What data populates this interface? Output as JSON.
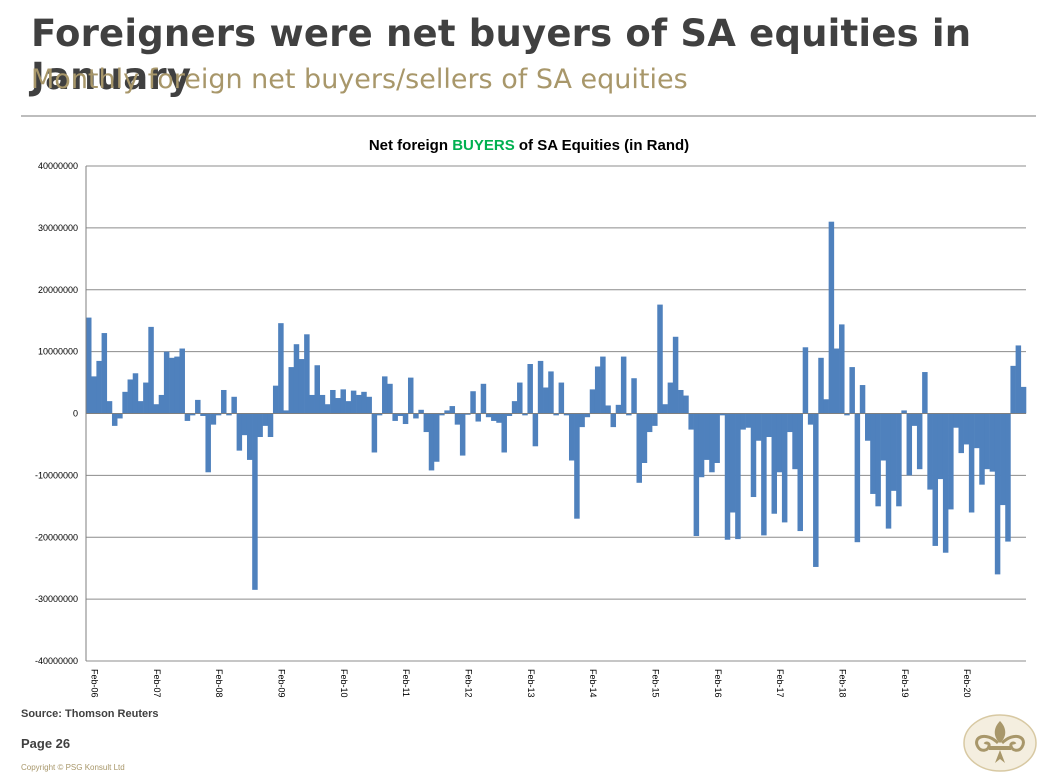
{
  "header": {
    "title": "Foreigners were net buyers of SA equities in January",
    "subtitle": "Monthly foreign net buyers/sellers of SA equities"
  },
  "footer": {
    "source": "Source: Thomson Reuters",
    "page": "Page 26",
    "copyright": "Copyright © PSG Konsult Ltd"
  },
  "logo_icon": "fleur-de-lis-icon",
  "colors": {
    "bar": "#4F81BD",
    "buyers_highlight": "#00B050",
    "title": "#404040",
    "subtitle": "#A8976A"
  },
  "chart_data": {
    "type": "bar",
    "title_parts": [
      "Net foreign ",
      "BUYERS",
      " of SA Equities (in Rand)"
    ],
    "x_start": "Feb-06",
    "x_end": "Jan-21",
    "x_tick_labels": [
      "Feb-06",
      "Feb-07",
      "Feb-08",
      "Feb-09",
      "Feb-10",
      "Feb-11",
      "Feb-12",
      "Feb-13",
      "Feb-14",
      "Feb-15",
      "Feb-16",
      "Feb-17",
      "Feb-18",
      "Feb-19",
      "Feb-20"
    ],
    "y_tick_labels": [
      "40000000",
      "30000000",
      "20000000",
      "10000000",
      "0",
      "-10000000",
      "-20000000",
      "-30000000",
      "-40000000"
    ],
    "ylim": [
      -40000000,
      40000000
    ],
    "grid": true,
    "legend": "none",
    "values": [
      15500000,
      6000000,
      8500000,
      13000000,
      2000000,
      -2000000,
      -800000,
      3500000,
      5500000,
      6500000,
      2000000,
      5000000,
      14000000,
      1500000,
      3000000,
      10000000,
      9000000,
      9200000,
      10500000,
      -1200000,
      -300000,
      2200000,
      -400000,
      -9500000,
      -1800000,
      -300000,
      3800000,
      -300000,
      2700000,
      -6000000,
      -3500000,
      -7500000,
      -28500000,
      -3800000,
      -2000000,
      -3800000,
      4500000,
      14600000,
      500000,
      7500000,
      11200000,
      8800000,
      12800000,
      3000000,
      7800000,
      3000000,
      1500000,
      3800000,
      2500000,
      3900000,
      2000000,
      3700000,
      3000000,
      3500000,
      2700000,
      -6300000,
      -300000,
      6000000,
      4800000,
      -1200000,
      -400000,
      -1700000,
      5800000,
      -800000,
      600000,
      -3000000,
      -9200000,
      -7800000,
      -300000,
      500000,
      1200000,
      -1800000,
      -6800000,
      -200000,
      3600000,
      -1300000,
      4800000,
      -600000,
      -1200000,
      -1500000,
      -6300000,
      -400000,
      2000000,
      5000000,
      -300000,
      8000000,
      -5300000,
      8500000,
      4200000,
      6800000,
      -300000,
      5000000,
      -300000,
      -7600000,
      -17000000,
      -2200000,
      -600000,
      3900000,
      7600000,
      9200000,
      1300000,
      -2200000,
      1400000,
      9200000,
      -300000,
      5700000,
      -11200000,
      -8000000,
      -3000000,
      -2000000,
      17600000,
      1500000,
      5000000,
      12400000,
      3800000,
      2900000,
      -2600000,
      -19800000,
      -10300000,
      -7500000,
      -9500000,
      -8000000,
      -300000,
      -20400000,
      -16000000,
      -20300000,
      -2600000,
      -2300000,
      -13500000,
      -4400000,
      -19700000,
      -3800000,
      -16200000,
      -9500000,
      -17600000,
      -3000000,
      -9000000,
      -19000000,
      10700000,
      -1800000,
      -24800000,
      9000000,
      2300000,
      31000000,
      10500000,
      14400000,
      -300000,
      7500000,
      -20800000,
      4600000,
      -4400000,
      -13000000,
      -15000000,
      -7600000,
      -18600000,
      -12500000,
      -15000000,
      500000,
      -10000000,
      -2000000,
      -9000000,
      6700000,
      -12300000,
      -21400000,
      -10600000,
      -22500000,
      -15500000,
      -2300000,
      -6400000,
      -5000000,
      -16000000,
      -5600000,
      -11500000,
      -9000000,
      -9400000,
      -26000000,
      -14800000,
      -20700000,
      7700000,
      11000000,
      4300000
    ]
  }
}
